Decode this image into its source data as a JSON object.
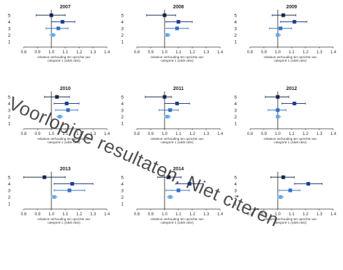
{
  "watermark": "Voorlopige resultaten. Niet citeren",
  "colors": {
    "axis": "#333333",
    "ref_line": "#333333",
    "category_colors": {
      "5": "#152345",
      "4": "#1f3c8c",
      "3": "#2f6fc4",
      "2": "#62a8e8"
    }
  },
  "chart_data": [
    {
      "type": "scatter",
      "subtype": "forest-plot",
      "title": "2007",
      "xlabel": "relatieve verhouding ten opzichte van categorie 1 (odds ratio)",
      "xlim": [
        0.8,
        1.4
      ],
      "xticks": [
        "0.8",
        "0.9",
        "1.0",
        "1.1",
        "1.2",
        "1.3",
        "1.4"
      ],
      "yticks": [
        "5",
        "4",
        "3",
        "2",
        "1"
      ],
      "series": [
        {
          "category": "5",
          "x": 1.0,
          "ci": [
            0.89,
            1.1
          ]
        },
        {
          "category": "4",
          "x": 1.08,
          "ci": [
            1.0,
            1.17
          ]
        },
        {
          "category": "3",
          "x": 1.05,
          "ci": [
            0.96,
            1.12
          ]
        },
        {
          "category": "2",
          "x": 1.01,
          "ci": [
            0.99,
            1.03
          ]
        }
      ]
    },
    {
      "type": "scatter",
      "subtype": "forest-plot",
      "title": "2008",
      "xlabel": "relatieve verhouding ten opzichte van categorie 1 (odds ratio)",
      "xlim": [
        0.8,
        1.4
      ],
      "xticks": [
        "0.8",
        "0.9",
        "1.0",
        "1.1",
        "1.2",
        "1.3",
        "1.4"
      ],
      "yticks": [
        "5",
        "4",
        "3",
        "2",
        "1"
      ],
      "series": [
        {
          "category": "5",
          "x": 1.0,
          "ci": [
            0.87,
            1.08
          ]
        },
        {
          "category": "4",
          "x": 1.1,
          "ci": [
            1.01,
            1.2
          ]
        },
        {
          "category": "3",
          "x": 1.09,
          "ci": [
            1.0,
            1.17
          ]
        },
        {
          "category": "2",
          "x": 1.02,
          "ci": [
            1.0,
            1.04
          ]
        }
      ]
    },
    {
      "type": "scatter",
      "subtype": "forest-plot",
      "title": "2009",
      "xlabel": "relatieve verhouding ten opzichte van categorie 1 (odds ratio)",
      "xlim": [
        0.8,
        1.4
      ],
      "xticks": [
        "0.8",
        "0.9",
        "1.0",
        "1.1",
        "1.2",
        "1.3",
        "1.4"
      ],
      "yticks": [
        "5",
        "4",
        "3",
        "2",
        "1"
      ],
      "series": [
        {
          "category": "5",
          "x": 1.04,
          "ci": [
            0.96,
            1.13
          ]
        },
        {
          "category": "4",
          "x": 1.12,
          "ci": [
            1.02,
            1.21
          ]
        },
        {
          "category": "3",
          "x": 1.02,
          "ci": [
            0.94,
            1.1
          ]
        },
        {
          "category": "2",
          "x": 1.0,
          "ci": [
            0.99,
            1.02
          ]
        }
      ]
    },
    {
      "type": "scatter",
      "subtype": "forest-plot",
      "title": "2010",
      "xlabel": "relatieve verhouding ten opzichte van categorie 1 (odds ratio)",
      "xlim": [
        0.8,
        1.4
      ],
      "xticks": [
        "0.8",
        "0.9",
        "1.0",
        "1.1",
        "1.2",
        "1.3",
        "1.4"
      ],
      "yticks": [
        "5",
        "4",
        "3",
        "2",
        "1"
      ],
      "series": [
        {
          "category": "5",
          "x": 1.04,
          "ci": [
            0.95,
            1.13
          ]
        },
        {
          "category": "4",
          "x": 1.11,
          "ci": [
            1.02,
            1.2
          ]
        },
        {
          "category": "3",
          "x": 1.12,
          "ci": [
            1.03,
            1.19
          ]
        },
        {
          "category": "2",
          "x": 1.06,
          "ci": [
            1.04,
            1.08
          ]
        }
      ]
    },
    {
      "type": "scatter",
      "subtype": "forest-plot",
      "title": "2011",
      "xlabel": "relatieve verhouding ten opzichte van categorie 1 (odds ratio)",
      "xlim": [
        0.8,
        1.4
      ],
      "xticks": [
        "0.8",
        "0.9",
        "1.0",
        "1.1",
        "1.2",
        "1.3",
        "1.4"
      ],
      "yticks": [
        "5",
        "4",
        "3",
        "2",
        "1"
      ],
      "series": [
        {
          "category": "5",
          "x": 1.0,
          "ci": [
            0.86,
            1.05
          ]
        },
        {
          "category": "4",
          "x": 1.09,
          "ci": [
            1.0,
            1.18
          ]
        },
        {
          "category": "3",
          "x": 1.04,
          "ci": [
            0.96,
            1.1
          ]
        },
        {
          "category": "2",
          "x": 1.02,
          "ci": [
            1.0,
            1.04
          ]
        }
      ]
    },
    {
      "type": "scatter",
      "subtype": "forest-plot",
      "title": "2012",
      "xlabel": "relatieve verhouding ten opzichte van categorie 1 (odds ratio)",
      "xlim": [
        0.8,
        1.4
      ],
      "xticks": [
        "0.8",
        "0.9",
        "1.0",
        "1.1",
        "1.2",
        "1.3",
        "1.4"
      ],
      "yticks": [
        "5",
        "4",
        "3",
        "2",
        "1"
      ],
      "series": [
        {
          "category": "5",
          "x": 1.0,
          "ci": [
            0.91,
            1.08
          ]
        },
        {
          "category": "4",
          "x": 1.12,
          "ci": [
            1.03,
            1.2
          ]
        },
        {
          "category": "3",
          "x": 1.0,
          "ci": [
            0.93,
            1.06
          ]
        },
        {
          "category": "2",
          "x": 1.0,
          "ci": [
            0.99,
            1.02
          ]
        }
      ]
    },
    {
      "type": "scatter",
      "subtype": "forest-plot",
      "title": "2013",
      "xlabel": "relatieve verhouding ten opzichte van categorie 1 (odds ratio)",
      "xlim": [
        0.8,
        1.4
      ],
      "xticks": [
        "0.8",
        "0.9",
        "1.0",
        "1.1",
        "1.2",
        "1.3",
        "1.4"
      ],
      "yticks": [
        "5",
        "4",
        "3",
        "2",
        "1"
      ],
      "series": [
        {
          "category": "5",
          "x": 0.95,
          "ci": [
            0.8,
            1.1
          ]
        },
        {
          "category": "4",
          "x": 1.15,
          "ci": [
            1.02,
            1.3
          ]
        },
        {
          "category": "3",
          "x": 1.13,
          "ci": [
            1.02,
            1.24
          ]
        },
        {
          "category": "2",
          "x": 1.02,
          "ci": [
            1.0,
            1.04
          ]
        }
      ]
    },
    {
      "type": "scatter",
      "subtype": "forest-plot",
      "title": "2014",
      "xlabel": "relatieve verhouding ten opzichte van categorie 1 (odds ratio)",
      "xlim": [
        0.8,
        1.4
      ],
      "xticks": [
        "0.8",
        "0.9",
        "1.0",
        "1.1",
        "1.2",
        "1.3",
        "1.4"
      ],
      "yticks": [
        "5",
        "4",
        "3",
        "2",
        "1"
      ],
      "series": [
        {
          "category": "5",
          "x": 1.03,
          "ci": [
            0.95,
            1.12
          ]
        },
        {
          "category": "4",
          "x": 1.18,
          "ci": [
            1.08,
            1.28
          ]
        },
        {
          "category": "3",
          "x": 1.1,
          "ci": [
            1.01,
            1.18
          ]
        },
        {
          "category": "2",
          "x": 1.04,
          "ci": [
            1.02,
            1.06
          ]
        }
      ]
    },
    {
      "type": "scatter",
      "subtype": "forest-plot",
      "title": "",
      "xlabel": "relatieve verhouding ten opzichte van categorie 1 (odds ratio)",
      "xlim": [
        0.8,
        1.4
      ],
      "xticks": [
        "0.8",
        "0.9",
        "1.0",
        "1.1",
        "1.2",
        "1.3",
        "1.4"
      ],
      "yticks": [
        "5",
        "4",
        "3",
        "2",
        "1"
      ],
      "series": [
        {
          "category": "5",
          "x": 1.04,
          "ci": [
            0.95,
            1.12
          ]
        },
        {
          "category": "4",
          "x": 1.22,
          "ci": [
            1.12,
            1.32
          ]
        },
        {
          "category": "3",
          "x": 1.09,
          "ci": [
            1.01,
            1.16
          ]
        },
        {
          "category": "2",
          "x": 1.02,
          "ci": [
            1.0,
            1.04
          ]
        }
      ]
    }
  ]
}
